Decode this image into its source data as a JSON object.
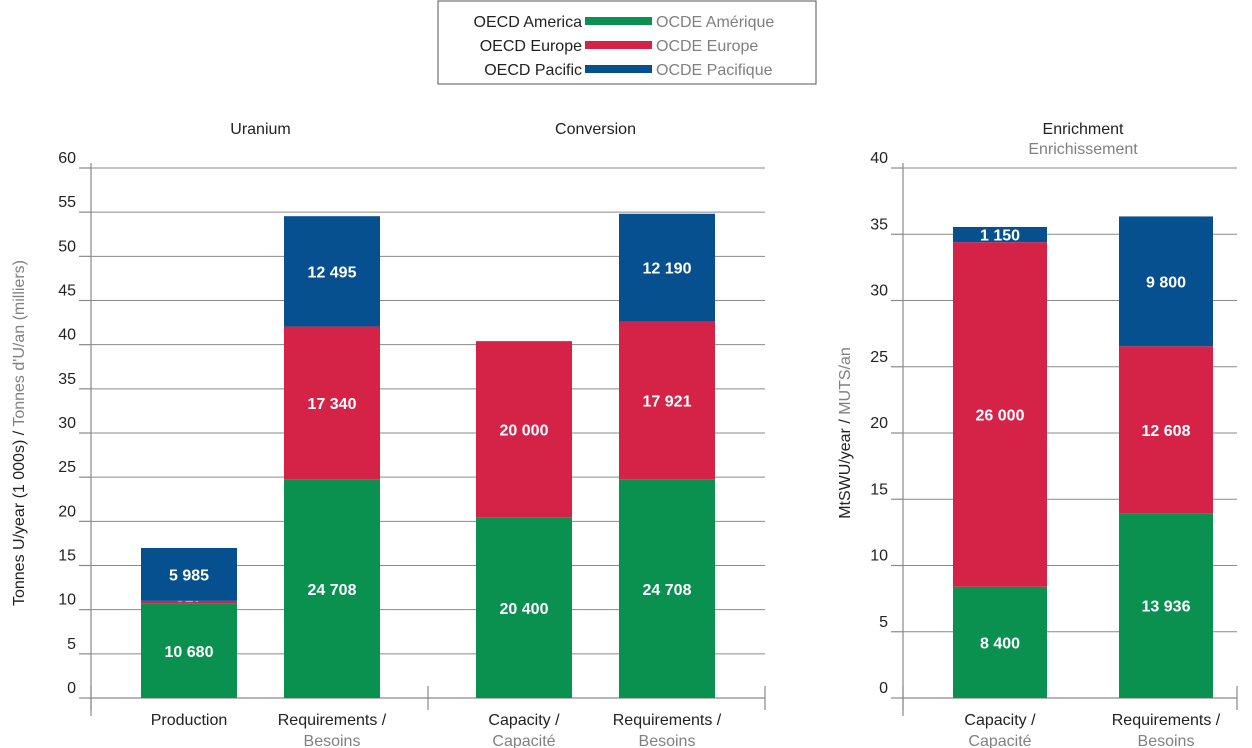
{
  "legend": {
    "items": [
      {
        "en": "OECD America",
        "fr": "OCDE Amérique",
        "color_key": "america"
      },
      {
        "en": "OECD Europe",
        "fr": "OCDE Europe",
        "color_key": "europe"
      },
      {
        "en": "OECD Pacific",
        "fr": "OCDE Pacifique",
        "color_key": "pacific"
      }
    ]
  },
  "colors": {
    "america": "#0a9150",
    "europe": "#d42347",
    "pacific": "#06508f"
  },
  "chart_data": [
    {
      "type": "bar",
      "stacked": true,
      "ylabel_en": "Tonnes U/year (1 000s) /",
      "ylabel_fr": "Tonnes d'U/an (milliers)",
      "ylim": [
        0,
        60
      ],
      "yticks": [
        0,
        5,
        10,
        15,
        20,
        25,
        30,
        35,
        40,
        45,
        50,
        55,
        60
      ],
      "grid": true,
      "groups": [
        {
          "title": "Uranium",
          "subtitle": "",
          "categories": [
            0,
            1
          ]
        },
        {
          "title": "Conversion",
          "subtitle": "",
          "categories": [
            2,
            3
          ]
        }
      ],
      "categories": [
        {
          "en": "Production",
          "fr": ""
        },
        {
          "en": "Requirements /",
          "fr": "Besoins"
        },
        {
          "en": "Capacity /",
          "fr": "Capacité"
        },
        {
          "en": "Requirements /",
          "fr": "Besoins"
        }
      ],
      "series": [
        {
          "key": "america",
          "values": [
            10.68,
            24.708,
            20.4,
            24.708
          ],
          "labels": [
            "10 680",
            "24 708",
            "20 400",
            "24 708"
          ]
        },
        {
          "key": "europe",
          "values": [
            0.317,
            17.34,
            20.0,
            17.921
          ],
          "labels": [
            "317",
            "17 340",
            "20 000",
            "17 921"
          ]
        },
        {
          "key": "pacific",
          "values": [
            5.985,
            12.495,
            0,
            12.19
          ],
          "labels": [
            "5 985",
            "12 495",
            "",
            "12 190"
          ]
        }
      ]
    },
    {
      "type": "bar",
      "stacked": true,
      "ylabel_en": "MtSWU/year /",
      "ylabel_fr": "MUTS/an",
      "ylim": [
        0,
        40
      ],
      "yticks": [
        0,
        5,
        10,
        15,
        20,
        25,
        30,
        35,
        40
      ],
      "grid": true,
      "groups": [
        {
          "title": "Enrichment",
          "subtitle": "Enrichissement",
          "categories": [
            0,
            1
          ]
        }
      ],
      "categories": [
        {
          "en": "Capacity /",
          "fr": "Capacité"
        },
        {
          "en": "Requirements /",
          "fr": "Besoins"
        }
      ],
      "series": [
        {
          "key": "america",
          "values": [
            8.4,
            13.936
          ],
          "labels": [
            "8 400",
            "13 936"
          ]
        },
        {
          "key": "europe",
          "values": [
            26.0,
            12.608
          ],
          "labels": [
            "26 000",
            "12 608"
          ]
        },
        {
          "key": "pacific",
          "values": [
            1.15,
            9.8
          ],
          "labels": [
            "1 150",
            "9 800"
          ]
        }
      ]
    }
  ]
}
